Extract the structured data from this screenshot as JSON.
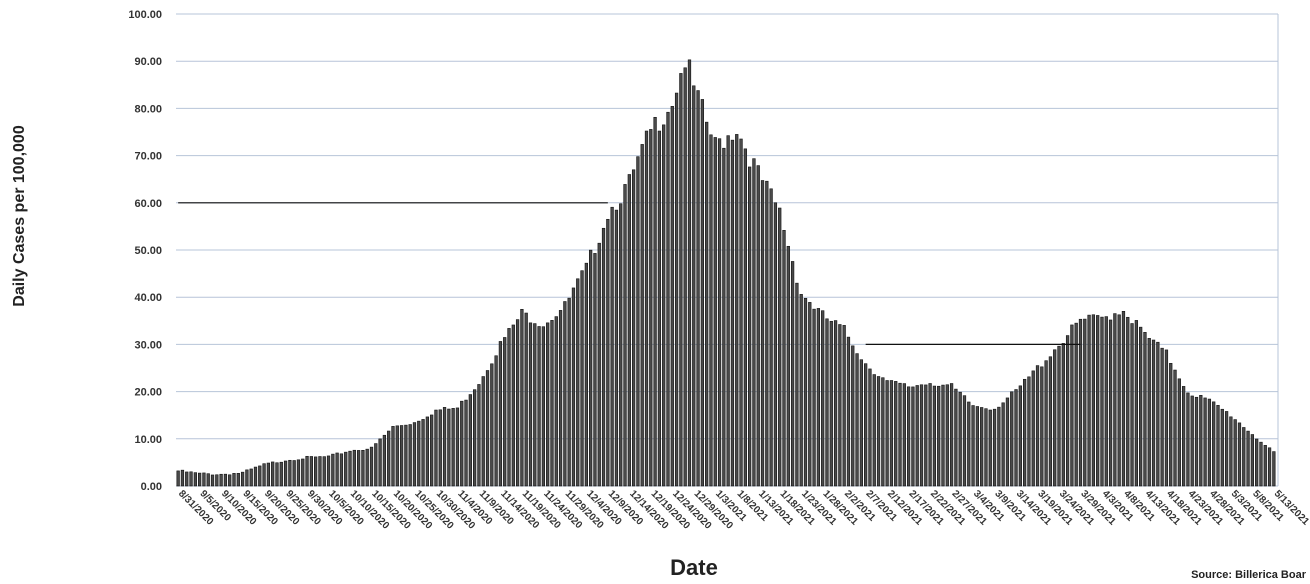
{
  "chart_data": {
    "type": "bar",
    "title": "",
    "xlabel": "Date",
    "ylabel": "Daily Cases per 100,000",
    "ylim": [
      0,
      100
    ],
    "yticks": [
      "0.00",
      "10.00",
      "20.00",
      "30.00",
      "40.00",
      "50.00",
      "60.00",
      "70.00",
      "80.00",
      "90.00",
      "100.00"
    ],
    "grid": true,
    "legend": "none",
    "reference_lines": [
      {
        "y": 60,
        "from": "8/31/2020",
        "to": "12/9/2020"
      },
      {
        "y": 30,
        "from": "2/7/2021",
        "to": "3/29/2021"
      }
    ],
    "source_text": "Source: Billerica Boar",
    "colors": {
      "bar": "#4a4a4a",
      "bar_edge": "#111111",
      "grid": "#b7c4d8"
    },
    "start_date": "8/31/2020",
    "end_date": "5/13/2021",
    "xtick_labels": [
      "8/31/2020",
      "9/5/2020",
      "9/10/2020",
      "9/15/2020",
      "9/20/2020",
      "9/25/2020",
      "9/30/2020",
      "10/5/2020",
      "10/10/2020",
      "10/15/2020",
      "10/20/2020",
      "10/25/2020",
      "10/30/2020",
      "11/4/2020",
      "11/9/2020",
      "11/14/2020",
      "11/19/2020",
      "11/24/2020",
      "11/29/2020",
      "12/4/2020",
      "12/9/2020",
      "12/14/2020",
      "12/19/2020",
      "12/24/2020",
      "12/29/2020",
      "1/3/2021",
      "1/8/2021",
      "1/13/2021",
      "1/18/2021",
      "1/23/2021",
      "1/28/2021",
      "2/2/2021",
      "2/7/2021",
      "2/12/2021",
      "2/17/2021",
      "2/22/2021",
      "2/27/2021",
      "3/4/2021",
      "3/9/2021",
      "3/14/2021",
      "3/19/2021",
      "3/24/2021",
      "3/29/2021",
      "4/3/2021",
      "4/8/2021",
      "4/13/2021",
      "4/18/2021",
      "4/23/2021",
      "4/28/2021",
      "5/3/2021",
      "5/8/2021",
      "5/13/2021"
    ],
    "anchors": [
      [
        "8/31/2020",
        3.2
      ],
      [
        "9/5/2020",
        2.6
      ],
      [
        "9/10/2020",
        2.5
      ],
      [
        "9/15/2020",
        2.8
      ],
      [
        "9/20/2020",
        4.5
      ],
      [
        "9/25/2020",
        5.5
      ],
      [
        "9/30/2020",
        6.0
      ],
      [
        "10/5/2020",
        6.2
      ],
      [
        "10/10/2020",
        7.5
      ],
      [
        "10/15/2020",
        8.0
      ],
      [
        "10/20/2020",
        12.5
      ],
      [
        "10/25/2020",
        13.5
      ],
      [
        "10/30/2020",
        16.0
      ],
      [
        "11/4/2020",
        16.5
      ],
      [
        "11/9/2020",
        22.0
      ],
      [
        "11/14/2020",
        30.0
      ],
      [
        "11/19/2020",
        36.5
      ],
      [
        "11/24/2020",
        34.5
      ],
      [
        "11/29/2020",
        38.0
      ],
      [
        "12/4/2020",
        46.0
      ],
      [
        "12/9/2020",
        58.0
      ],
      [
        "12/14/2020",
        64.0
      ],
      [
        "12/19/2020",
        75.0
      ],
      [
        "12/24/2020",
        82.0
      ],
      [
        "12/27/2020",
        90.5
      ],
      [
        "12/29/2020",
        84.0
      ],
      [
        "1/3/2021",
        72.0
      ],
      [
        "1/8/2021",
        76.0
      ],
      [
        "1/13/2021",
        66.0
      ],
      [
        "1/18/2021",
        58.0
      ],
      [
        "1/23/2021",
        41.0
      ],
      [
        "1/28/2021",
        36.0
      ],
      [
        "2/2/2021",
        33.0
      ],
      [
        "2/7/2021",
        26.0
      ],
      [
        "2/12/2021",
        22.0
      ],
      [
        "2/17/2021",
        21.0
      ],
      [
        "2/22/2021",
        22.0
      ],
      [
        "2/27/2021",
        21.0
      ],
      [
        "3/4/2021",
        17.0
      ],
      [
        "3/9/2021",
        16.5
      ],
      [
        "3/14/2021",
        20.0
      ],
      [
        "3/19/2021",
        25.0
      ],
      [
        "3/24/2021",
        30.0
      ],
      [
        "3/29/2021",
        35.0
      ],
      [
        "4/3/2021",
        35.5
      ],
      [
        "4/8/2021",
        37.5
      ],
      [
        "4/13/2021",
        32.0
      ],
      [
        "4/18/2021",
        28.0
      ],
      [
        "4/23/2021",
        20.0
      ],
      [
        "4/28/2021",
        18.0
      ],
      [
        "5/3/2021",
        15.0
      ],
      [
        "5/8/2021",
        11.0
      ],
      [
        "5/13/2021",
        7.0
      ]
    ]
  }
}
